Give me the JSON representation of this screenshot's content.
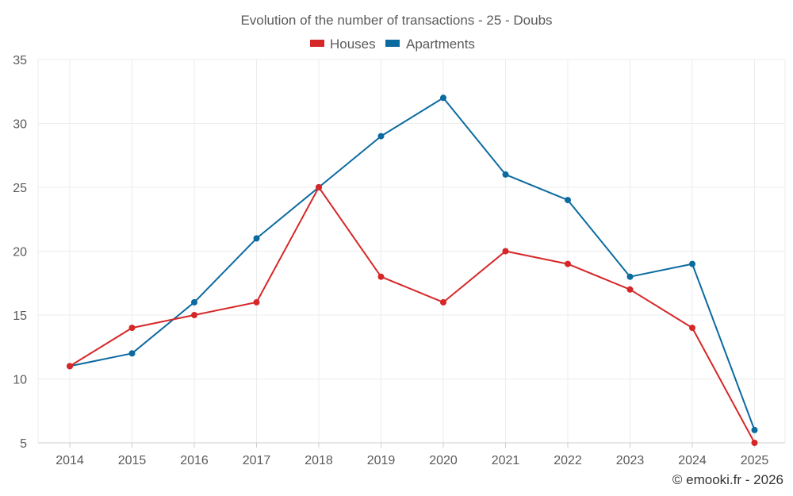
{
  "chart_data": {
    "type": "line",
    "title": "Evolution of the number of transactions - 25 - Doubs",
    "categories": [
      "2014",
      "2015",
      "2016",
      "2017",
      "2018",
      "2019",
      "2020",
      "2021",
      "2022",
      "2023",
      "2024",
      "2025"
    ],
    "series": [
      {
        "name": "Houses",
        "color": "#d62728",
        "values": [
          11,
          14,
          15,
          16,
          25,
          18,
          16,
          20,
          19,
          17,
          14,
          5
        ]
      },
      {
        "name": "Apartments",
        "color": "#0b6aa0",
        "values": [
          11,
          12,
          16,
          21,
          25,
          29,
          32,
          26,
          24,
          18,
          19,
          6
        ]
      }
    ],
    "ylim": [
      5,
      35
    ],
    "yticks": [
      "5",
      "10",
      "15",
      "20",
      "25",
      "30",
      "35"
    ],
    "grid": true,
    "legend_position": "top-center"
  },
  "credit": "© emooki.fr - 2026"
}
